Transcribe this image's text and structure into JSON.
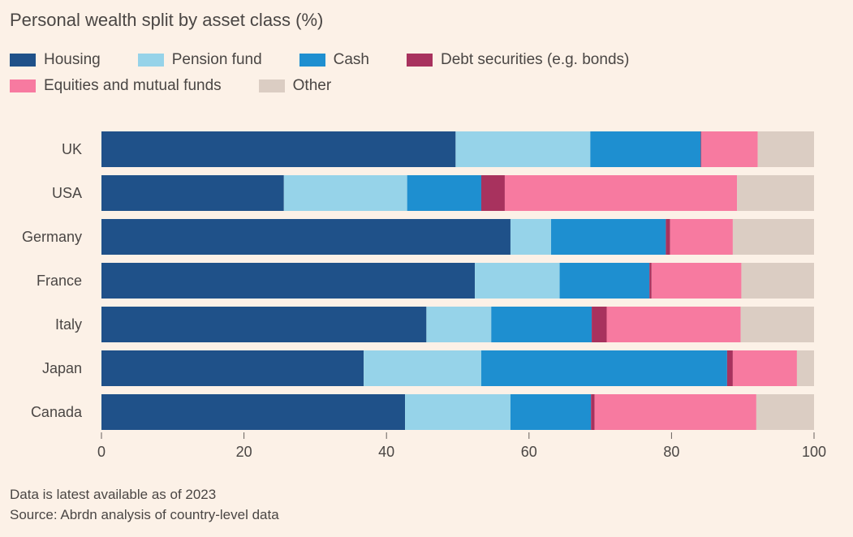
{
  "chart_data": {
    "type": "bar",
    "orientation": "horizontal",
    "stacked": true,
    "title": "Personal wealth split by asset class (%)",
    "categories": [
      "UK",
      "USA",
      "Germany",
      "France",
      "Italy",
      "Japan",
      "Canada"
    ],
    "series": [
      {
        "name": "Housing",
        "color": "#1f5189",
        "values": [
          49.7,
          25.6,
          57.4,
          52.4,
          45.6,
          36.8,
          42.6
        ]
      },
      {
        "name": "Pension fund",
        "color": "#96d3e9",
        "values": [
          18.9,
          17.3,
          5.7,
          11.9,
          9.1,
          16.5,
          14.8
        ]
      },
      {
        "name": "Cash",
        "color": "#1e8fd0",
        "values": [
          15.5,
          10.4,
          16.1,
          12.6,
          14.1,
          34.5,
          11.3
        ]
      },
      {
        "name": "Debt securities (e.g. bonds)",
        "color": "#a8325e",
        "values": [
          0.1,
          3.3,
          0.6,
          0.3,
          2.1,
          0.8,
          0.5
        ]
      },
      {
        "name": "Equities and mutual funds",
        "color": "#f77aa0",
        "values": [
          7.9,
          32.6,
          8.8,
          12.6,
          18.8,
          9.0,
          22.7
        ]
      },
      {
        "name": "Other",
        "color": "#dbcdc3",
        "values": [
          7.9,
          10.8,
          11.4,
          10.2,
          10.3,
          2.4,
          8.1
        ]
      }
    ],
    "xlim": [
      0,
      100
    ],
    "xticks": [
      "0",
      "20",
      "40",
      "60",
      "80",
      "100"
    ],
    "grid": false,
    "legend_position": "top-left"
  },
  "footnotes": {
    "note": "Data is latest available as of 2023",
    "source": "Source: Abrdn analysis of country-level data"
  }
}
